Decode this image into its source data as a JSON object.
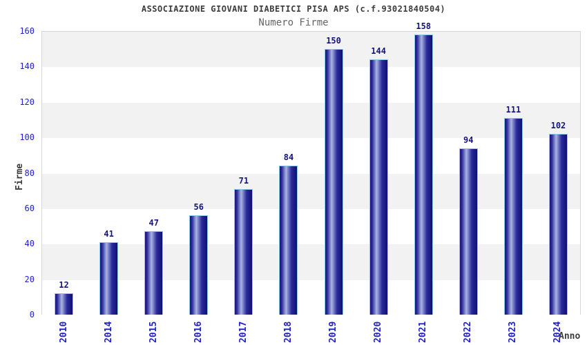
{
  "chart_data": {
    "type": "bar",
    "title": "ASSOCIAZIONE GIOVANI DIABETICI PISA APS (c.f.93021840504)",
    "subtitle": "Numero Firme",
    "xlabel": "Anno",
    "ylabel": "Firme",
    "categories": [
      "2010",
      "2014",
      "2015",
      "2016",
      "2017",
      "2018",
      "2019",
      "2020",
      "2021",
      "2022",
      "2023",
      "2024"
    ],
    "values": [
      12,
      41,
      47,
      56,
      71,
      84,
      150,
      144,
      158,
      94,
      111,
      102
    ],
    "ylim": [
      0,
      160
    ],
    "ytick_step": 20,
    "grid": "alternating-horizontal-bands",
    "legend": "none",
    "colors": {
      "bar_edge_dark": "#16167c",
      "bar_mid": "#2b2b9b",
      "bar_highlight": "#aab5e2",
      "bar_outline": "#8ec6ec",
      "value_label": "#14147e",
      "tick_label": "#1e1ed2",
      "title": "#3c3c3c",
      "subtitle": "#646464",
      "axis_title": "#3c3c3c",
      "band_gray": "#f2f2f2",
      "plot_border": "#d6d6d6"
    }
  }
}
